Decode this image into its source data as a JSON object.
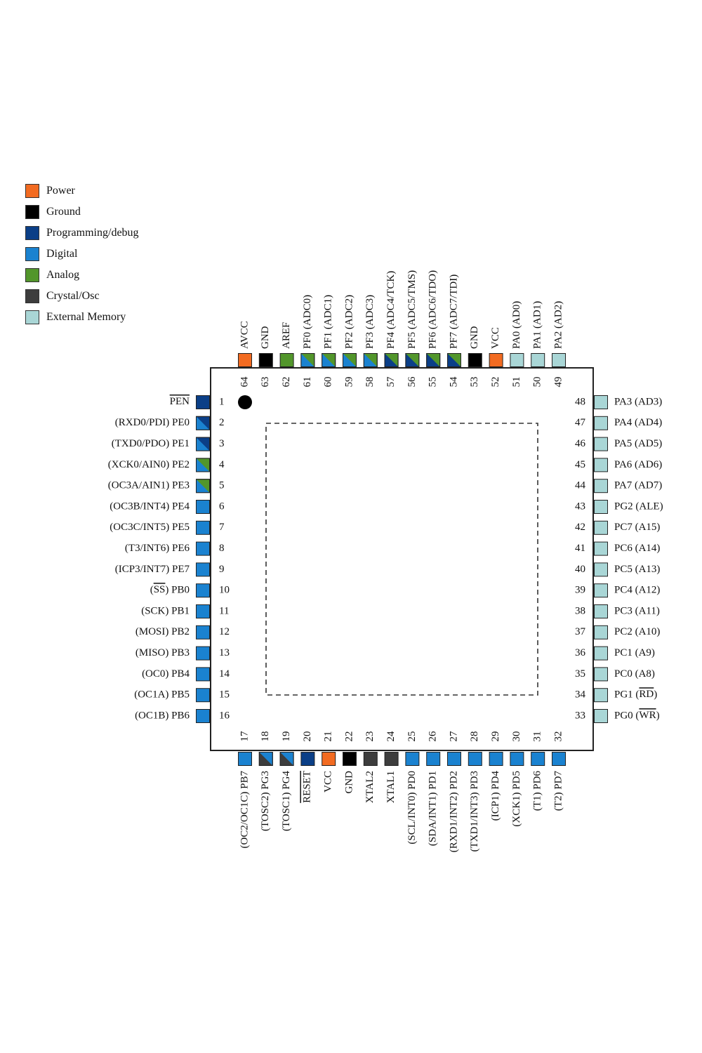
{
  "legend": [
    {
      "label": "Power",
      "color": "#f26b21"
    },
    {
      "label": "Ground",
      "color": "#000000"
    },
    {
      "label": "Programming/debug",
      "color": "#0b3f87"
    },
    {
      "label": "Digital",
      "color": "#1a82d0"
    },
    {
      "label": "Analog",
      "color": "#52962b"
    },
    {
      "label": "Crystal/Osc",
      "color": "#3d3d3d"
    },
    {
      "label": "External Memory",
      "color": "#a9d6d6"
    }
  ],
  "chip": {
    "first_pin_marker": "dot"
  },
  "pins": {
    "left": [
      {
        "num": "1",
        "label": "PEN",
        "overline": "PEN",
        "type": [
          "prog"
        ]
      },
      {
        "num": "2",
        "label": "(RXD0/PDI) PE0",
        "type": [
          "digital",
          "prog"
        ]
      },
      {
        "num": "3",
        "label": "(TXD0/PDO) PE1",
        "type": [
          "digital",
          "prog"
        ]
      },
      {
        "num": "4",
        "label": "(XCK0/AIN0) PE2",
        "type": [
          "digital",
          "analog"
        ]
      },
      {
        "num": "5",
        "label": "(OC3A/AIN1) PE3",
        "type": [
          "digital",
          "analog"
        ]
      },
      {
        "num": "6",
        "label": "(OC3B/INT4) PE4",
        "type": [
          "digital"
        ]
      },
      {
        "num": "7",
        "label": "(OC3C/INT5) PE5",
        "type": [
          "digital"
        ]
      },
      {
        "num": "8",
        "label": "(T3/INT6) PE6",
        "type": [
          "digital"
        ]
      },
      {
        "num": "9",
        "label": "(ICP3/INT7) PE7",
        "type": [
          "digital"
        ]
      },
      {
        "num": "10",
        "label": "(SS) PB0",
        "overline": "SS",
        "type": [
          "digital"
        ]
      },
      {
        "num": "11",
        "label": "(SCK) PB1",
        "type": [
          "digital"
        ]
      },
      {
        "num": "12",
        "label": "(MOSI) PB2",
        "type": [
          "digital"
        ]
      },
      {
        "num": "13",
        "label": "(MISO) PB3",
        "type": [
          "digital"
        ]
      },
      {
        "num": "14",
        "label": "(OC0) PB4",
        "type": [
          "digital"
        ]
      },
      {
        "num": "15",
        "label": "(OC1A) PB5",
        "type": [
          "digital"
        ]
      },
      {
        "num": "16",
        "label": "(OC1B) PB6",
        "type": [
          "digital"
        ]
      }
    ],
    "bottom": [
      {
        "num": "17",
        "label": "(OC2/OC1C) PB7",
        "type": [
          "digital"
        ]
      },
      {
        "num": "18",
        "label": "(TOSC2) PG3",
        "type": [
          "digital",
          "crystal"
        ]
      },
      {
        "num": "19",
        "label": "(TOSC1) PG4",
        "type": [
          "digital",
          "crystal"
        ]
      },
      {
        "num": "20",
        "label": "RESET",
        "overline": "RESET",
        "type": [
          "prog"
        ]
      },
      {
        "num": "21",
        "label": "VCC",
        "type": [
          "power"
        ]
      },
      {
        "num": "22",
        "label": "GND",
        "type": [
          "ground"
        ]
      },
      {
        "num": "23",
        "label": "XTAL2",
        "type": [
          "crystal"
        ]
      },
      {
        "num": "24",
        "label": "XTAL1",
        "type": [
          "crystal"
        ]
      },
      {
        "num": "25",
        "label": "(SCL/INT0) PD0",
        "type": [
          "digital"
        ]
      },
      {
        "num": "26",
        "label": "(SDA/INT1) PD1",
        "type": [
          "digital"
        ]
      },
      {
        "num": "27",
        "label": "(RXD1/INT2) PD2",
        "type": [
          "digital"
        ]
      },
      {
        "num": "28",
        "label": "(TXD1/INT3) PD3",
        "type": [
          "digital"
        ]
      },
      {
        "num": "29",
        "label": "(ICP1) PD4",
        "type": [
          "digital"
        ]
      },
      {
        "num": "30",
        "label": "(XCK1) PD5",
        "type": [
          "digital"
        ]
      },
      {
        "num": "31",
        "label": "(T1) PD6",
        "type": [
          "digital"
        ]
      },
      {
        "num": "32",
        "label": "(T2) PD7",
        "type": [
          "digital"
        ]
      }
    ],
    "right": [
      {
        "num": "33",
        "label": "PG0 (WR)",
        "overline": "WR",
        "type": [
          "extmem"
        ]
      },
      {
        "num": "34",
        "label": "PG1 (RD)",
        "overline": "RD",
        "type": [
          "extmem"
        ]
      },
      {
        "num": "35",
        "label": "PC0 (A8)",
        "type": [
          "extmem"
        ]
      },
      {
        "num": "36",
        "label": "PC1 (A9)",
        "type": [
          "extmem"
        ]
      },
      {
        "num": "37",
        "label": "PC2 (A10)",
        "type": [
          "extmem"
        ]
      },
      {
        "num": "38",
        "label": "PC3 (A11)",
        "type": [
          "extmem"
        ]
      },
      {
        "num": "39",
        "label": "PC4 (A12)",
        "type": [
          "extmem"
        ]
      },
      {
        "num": "40",
        "label": "PC5 (A13)",
        "type": [
          "extmem"
        ]
      },
      {
        "num": "41",
        "label": "PC6 (A14)",
        "type": [
          "extmem"
        ]
      },
      {
        "num": "42",
        "label": "PC7 (A15)",
        "type": [
          "extmem"
        ]
      },
      {
        "num": "43",
        "label": "PG2 (ALE)",
        "type": [
          "extmem"
        ]
      },
      {
        "num": "44",
        "label": "PA7 (AD7)",
        "type": [
          "extmem"
        ]
      },
      {
        "num": "45",
        "label": "PA6 (AD6)",
        "type": [
          "extmem"
        ]
      },
      {
        "num": "46",
        "label": "PA5 (AD5)",
        "type": [
          "extmem"
        ]
      },
      {
        "num": "47",
        "label": "PA4 (AD4)",
        "type": [
          "extmem"
        ]
      },
      {
        "num": "48",
        "label": "PA3 (AD3)",
        "type": [
          "extmem"
        ]
      }
    ],
    "top": [
      {
        "num": "49",
        "label": "PA2 (AD2)",
        "type": [
          "extmem"
        ]
      },
      {
        "num": "50",
        "label": "PA1 (AD1)",
        "type": [
          "extmem"
        ]
      },
      {
        "num": "51",
        "label": "PA0 (AD0)",
        "type": [
          "extmem"
        ]
      },
      {
        "num": "52",
        "label": "VCC",
        "type": [
          "power"
        ]
      },
      {
        "num": "53",
        "label": "GND",
        "type": [
          "ground"
        ]
      },
      {
        "num": "54",
        "label": "PF7 (ADC7/TDI)",
        "type": [
          "analog",
          "prog"
        ]
      },
      {
        "num": "55",
        "label": "PF6 (ADC6/TDO)",
        "type": [
          "analog",
          "prog"
        ]
      },
      {
        "num": "56",
        "label": "PF5 (ADC5/TMS)",
        "type": [
          "analog",
          "prog"
        ]
      },
      {
        "num": "57",
        "label": "PF4 (ADC4/TCK)",
        "type": [
          "analog",
          "prog"
        ]
      },
      {
        "num": "58",
        "label": "PF3 (ADC3)",
        "type": [
          "analog",
          "digital"
        ]
      },
      {
        "num": "59",
        "label": "PF2 (ADC2)",
        "type": [
          "analog",
          "digital"
        ]
      },
      {
        "num": "60",
        "label": "PF1 (ADC1)",
        "type": [
          "analog",
          "digital"
        ]
      },
      {
        "num": "61",
        "label": "PF0 (ADC0)",
        "type": [
          "analog",
          "digital"
        ]
      },
      {
        "num": "62",
        "label": "AREF",
        "type": [
          "analog"
        ]
      },
      {
        "num": "63",
        "label": "GND",
        "type": [
          "ground"
        ]
      },
      {
        "num": "64",
        "label": "AVCC",
        "type": [
          "power"
        ]
      }
    ]
  },
  "type_colors": {
    "power": "#f26b21",
    "ground": "#000000",
    "prog": "#0b3f87",
    "digital": "#1a82d0",
    "analog": "#52962b",
    "crystal": "#3d3d3d",
    "extmem": "#a9d6d6"
  }
}
